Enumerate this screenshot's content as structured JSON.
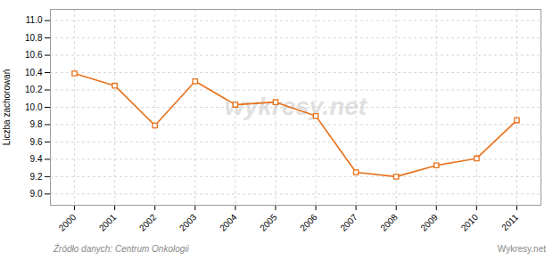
{
  "chart_data": {
    "type": "line",
    "x": [
      2000,
      2001,
      2002,
      2003,
      2004,
      2005,
      2006,
      2007,
      2008,
      2009,
      2010,
      2011
    ],
    "values": [
      10.39,
      10.25,
      9.79,
      10.3,
      10.03,
      10.06,
      9.9,
      9.25,
      9.2,
      9.33,
      9.41,
      9.85
    ],
    "color": "#e8711a",
    "marker": "square",
    "ylabel": "Liczba zachorowań",
    "xlim": [
      1999.4,
      2011.6
    ],
    "xticks": [
      2000,
      2001,
      2002,
      2003,
      2004,
      2005,
      2006,
      2007,
      2008,
      2009,
      2010,
      2011
    ],
    "ylim": [
      8.87,
      11.13
    ],
    "yticks": [
      {
        "value": 9.0,
        "label": "9.0"
      },
      9.2,
      9.4,
      9.6,
      9.8,
      {
        "value": 10.0,
        "label": "10.0"
      },
      10.2,
      10.4,
      10.6,
      10.8,
      {
        "value": 11.0,
        "label": "11.0"
      }
    ],
    "grid": true,
    "annotations": [
      "wykresy.net",
      "Źródło danych:  Centrum Onkologii",
      "Wykresy.net"
    ]
  }
}
